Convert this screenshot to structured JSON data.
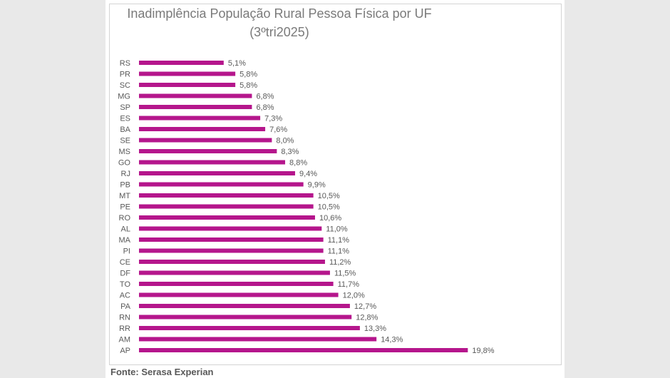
{
  "chart_data": {
    "type": "bar",
    "orientation": "horizontal",
    "title": "Inadimplência População Rural Pessoa Física por UF",
    "subtitle": "(3ºtri2025)",
    "categories": [
      "RS",
      "PR",
      "SC",
      "MG",
      "SP",
      "ES",
      "BA",
      "SE",
      "MS",
      "GO",
      "RJ",
      "PB",
      "MT",
      "PE",
      "RO",
      "AL",
      "MA",
      "PI",
      "CE",
      "DF",
      "TO",
      "AC",
      "PA",
      "RN",
      "RR",
      "AM",
      "AP"
    ],
    "values": [
      5.1,
      5.8,
      5.8,
      6.8,
      6.8,
      7.3,
      7.6,
      8.0,
      8.3,
      8.8,
      9.4,
      9.9,
      10.5,
      10.5,
      10.6,
      11.0,
      11.1,
      11.1,
      11.2,
      11.5,
      11.7,
      12.0,
      12.7,
      12.8,
      13.3,
      14.3,
      19.8
    ],
    "value_labels": [
      "5,1%",
      "5,8%",
      "5,8%",
      "6,8%",
      "6,8%",
      "7,3%",
      "7,6%",
      "8,0%",
      "8,3%",
      "8,8%",
      "9,4%",
      "9,9%",
      "10,5%",
      "10,5%",
      "10,6%",
      "11,0%",
      "11,1%",
      "11,1%",
      "11,2%",
      "11,5%",
      "11,7%",
      "12,0%",
      "12,7%",
      "12,8%",
      "13,3%",
      "14,3%",
      "19,8%"
    ],
    "xlabel": "",
    "ylabel": "",
    "xlim": [
      0,
      20
    ],
    "grid": false,
    "legend": "none",
    "colors": {
      "bar": "#b5168c",
      "text": "#595959",
      "title": "#7a7a7a"
    }
  },
  "source": "Fonte: Serasa Experian"
}
